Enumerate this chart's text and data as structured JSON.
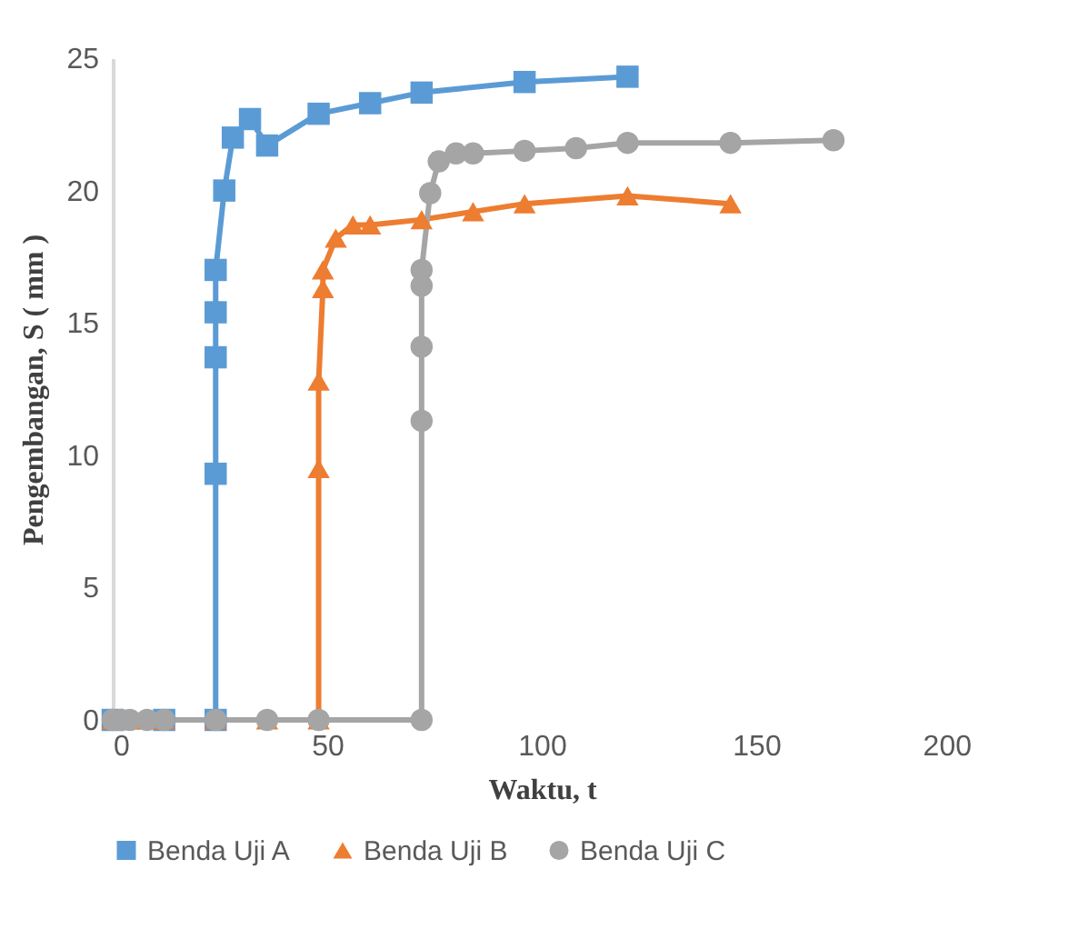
{
  "chart_data": {
    "type": "line",
    "xlabel": "Waktu, t",
    "ylabel": "Pengembangan, S ( mm )",
    "xlim": [
      0,
      200
    ],
    "xticks": [
      0,
      50,
      100,
      150,
      200
    ],
    "ylim": [
      0,
      25
    ],
    "yticks": [
      0,
      5,
      10,
      15,
      20,
      25
    ],
    "grid": false,
    "legend": "bottom",
    "line_style": "solid",
    "series": [
      {
        "name": "Benda Uji A",
        "color": "#5b9bd5",
        "marker": "square",
        "x": [
          0,
          12,
          24,
          24,
          24,
          24,
          24,
          26,
          28,
          32,
          36,
          48,
          60,
          72,
          96,
          120
        ],
        "values": [
          0,
          0,
          0,
          9.3,
          13.7,
          15.4,
          17.0,
          20.0,
          22.0,
          22.7,
          21.7,
          22.9,
          23.3,
          23.7,
          24.1,
          24.3
        ]
      },
      {
        "name": "Benda Uji B",
        "color": "#ed7d31",
        "marker": "triangle",
        "x": [
          0,
          2,
          4,
          8,
          12,
          24,
          36,
          48,
          48,
          48,
          49,
          49,
          52,
          56,
          60,
          72,
          84,
          96,
          120,
          144
        ],
        "values": [
          0,
          0,
          0,
          0,
          0,
          0,
          0,
          0,
          9.5,
          12.8,
          16.3,
          17.0,
          18.2,
          18.7,
          18.7,
          18.9,
          19.2,
          19.5,
          19.8,
          19.5
        ]
      },
      {
        "name": "Benda Uji C",
        "color": "#a5a5a5",
        "marker": "circle",
        "x": [
          0,
          2,
          4,
          8,
          12,
          24,
          36,
          48,
          72,
          72,
          72,
          72,
          72,
          74,
          76,
          80,
          84,
          96,
          108,
          120,
          144,
          168
        ],
        "values": [
          0,
          0,
          0,
          0,
          0,
          0,
          0,
          0,
          0,
          11.3,
          14.1,
          16.4,
          17.0,
          19.9,
          21.1,
          21.4,
          21.4,
          21.5,
          21.6,
          21.8,
          21.8,
          21.9
        ]
      }
    ]
  }
}
